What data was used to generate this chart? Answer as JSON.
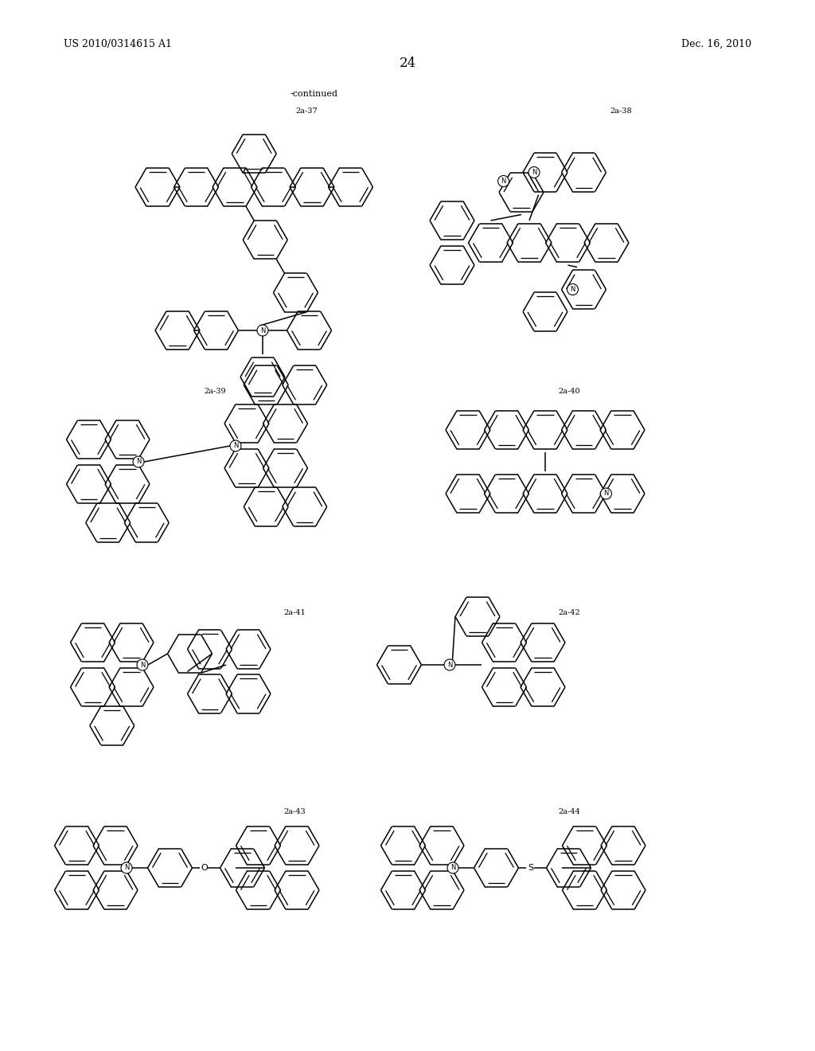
{
  "page_header_left": "US 2010/0314615 A1",
  "page_header_right": "Dec. 16, 2010",
  "page_number": "24",
  "continued_label": "-continued",
  "background_color": "#ffffff",
  "text_color": "#000000",
  "line_color": "#000000",
  "line_width": 1.1
}
